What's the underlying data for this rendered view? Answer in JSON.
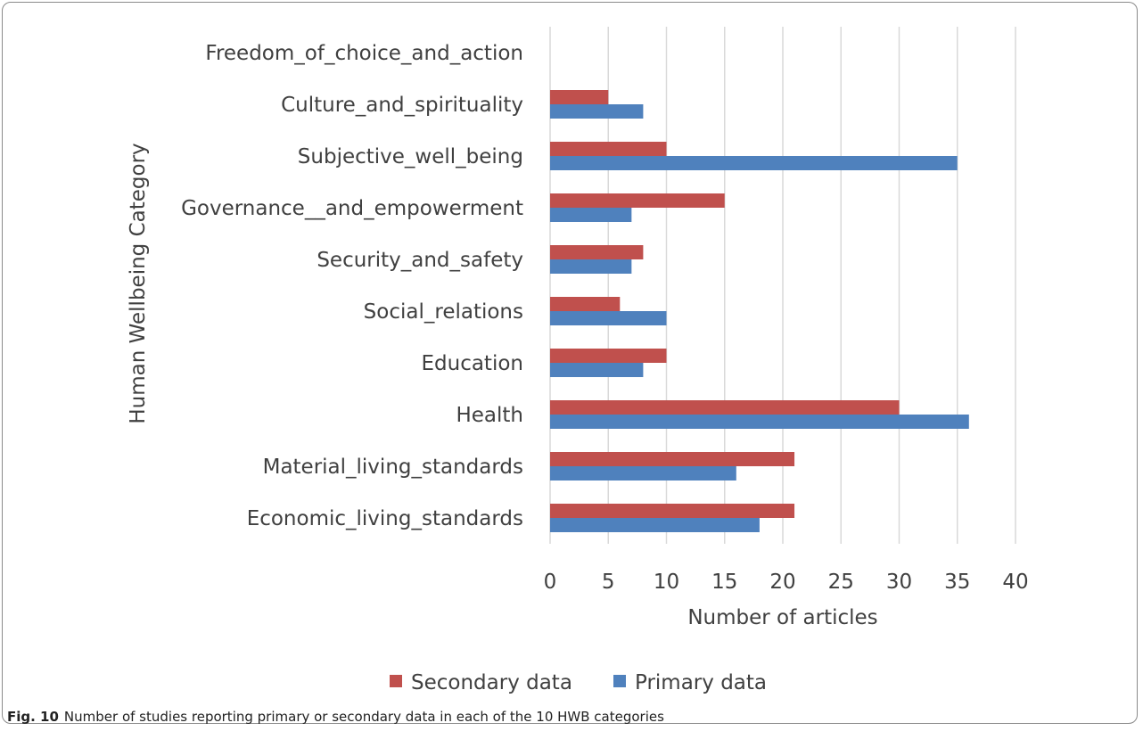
{
  "chart_data": {
    "type": "bar",
    "orientation": "horizontal",
    "categories": [
      "Economic_living_standards",
      "Material_living_standards",
      "Health",
      "Education",
      "Social_relations",
      "Security_and_safety",
      "Governance__and_empowerment",
      "Subjective_well_being",
      "Culture_and_spirituality",
      "Freedom_of_choice_and_action"
    ],
    "series": [
      {
        "name": "Secondary data",
        "color": "#c0504d",
        "values": [
          21,
          21,
          30,
          10,
          6,
          8,
          15,
          10,
          5,
          0
        ]
      },
      {
        "name": "Primary data",
        "color": "#4f81bd",
        "values": [
          18,
          16,
          36,
          8,
          10,
          7,
          7,
          35,
          8,
          0
        ]
      }
    ],
    "xlabel": "Number of articles",
    "ylabel": "Human Wellbeing  Category",
    "xlim": [
      0,
      40
    ],
    "xticks": [
      "0",
      "5",
      "10",
      "15",
      "20",
      "25",
      "30",
      "35",
      "40"
    ],
    "grid": true,
    "legend_position": "bottom"
  },
  "caption": {
    "label": "Fig. 10",
    "text": "Number of studies reporting primary or secondary data in each of the 10 HWB categories"
  }
}
